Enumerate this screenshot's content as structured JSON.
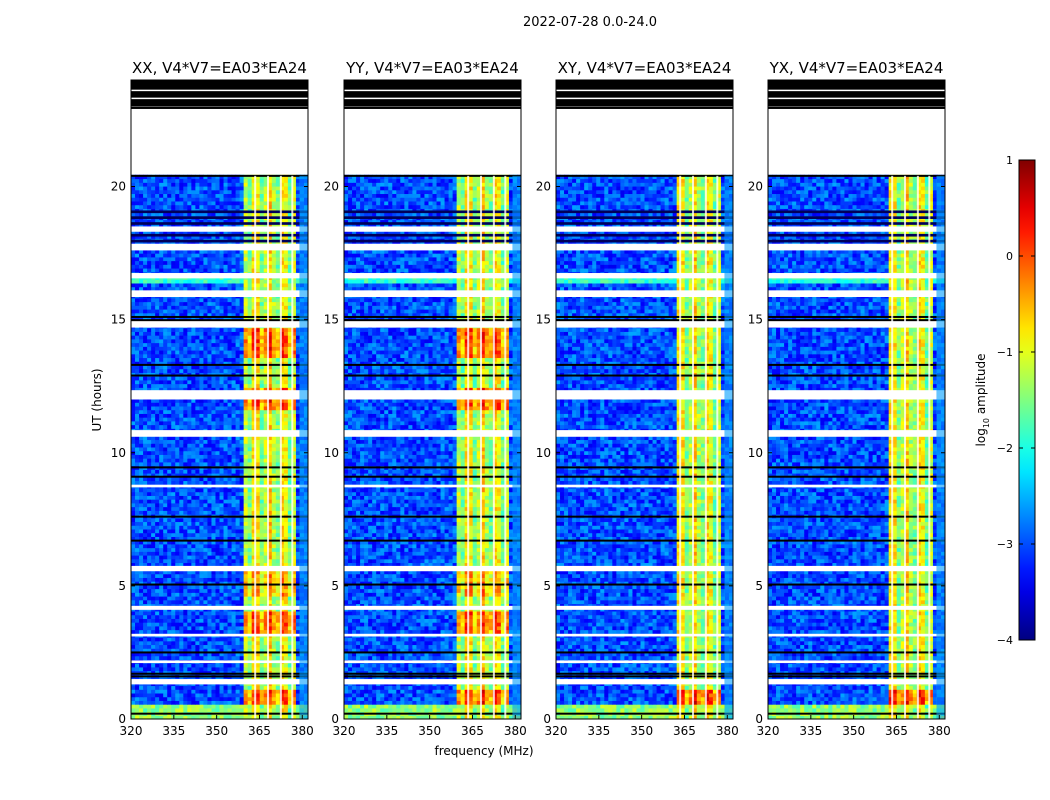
{
  "figure_title": "2022-07-28 0.0-24.0",
  "chart_data": {
    "type": "heatmap",
    "title": "2022-07-28 0.0-24.0",
    "xlabel": "frequency (MHz)",
    "ylabel": "UT (hours)",
    "xlim": [
      320,
      382
    ],
    "ylim": [
      0,
      24
    ],
    "xticks": [
      320,
      335,
      350,
      365,
      380
    ],
    "yticks": [
      0,
      5,
      10,
      15,
      20
    ],
    "panels": [
      {
        "id": "xx",
        "title": "XX, V4*V7=EA03*EA24",
        "strong_band_mhz": [
          360,
          378
        ]
      },
      {
        "id": "yy",
        "title": "YY, V4*V7=EA03*EA24",
        "strong_band_mhz": [
          360,
          378
        ]
      },
      {
        "id": "xy",
        "title": "XY, V4*V7=EA03*EA24",
        "strong_band_mhz": [
          362,
          378
        ]
      },
      {
        "id": "yx",
        "title": "YX, V4*V7=EA03*EA24",
        "strong_band_mhz": [
          362,
          378
        ]
      }
    ],
    "colorbar": {
      "label": "log10 amplitude",
      "label_main": "log",
      "label_sub": "10",
      "label_rest": " amplitude",
      "range": [
        -4,
        1
      ],
      "ticks": [
        "1",
        "0",
        "−1",
        "−2",
        "−3",
        "−4"
      ],
      "tick_values": [
        1,
        0,
        -1,
        -2,
        -3,
        -4
      ],
      "colormap": "jet"
    }
  }
}
